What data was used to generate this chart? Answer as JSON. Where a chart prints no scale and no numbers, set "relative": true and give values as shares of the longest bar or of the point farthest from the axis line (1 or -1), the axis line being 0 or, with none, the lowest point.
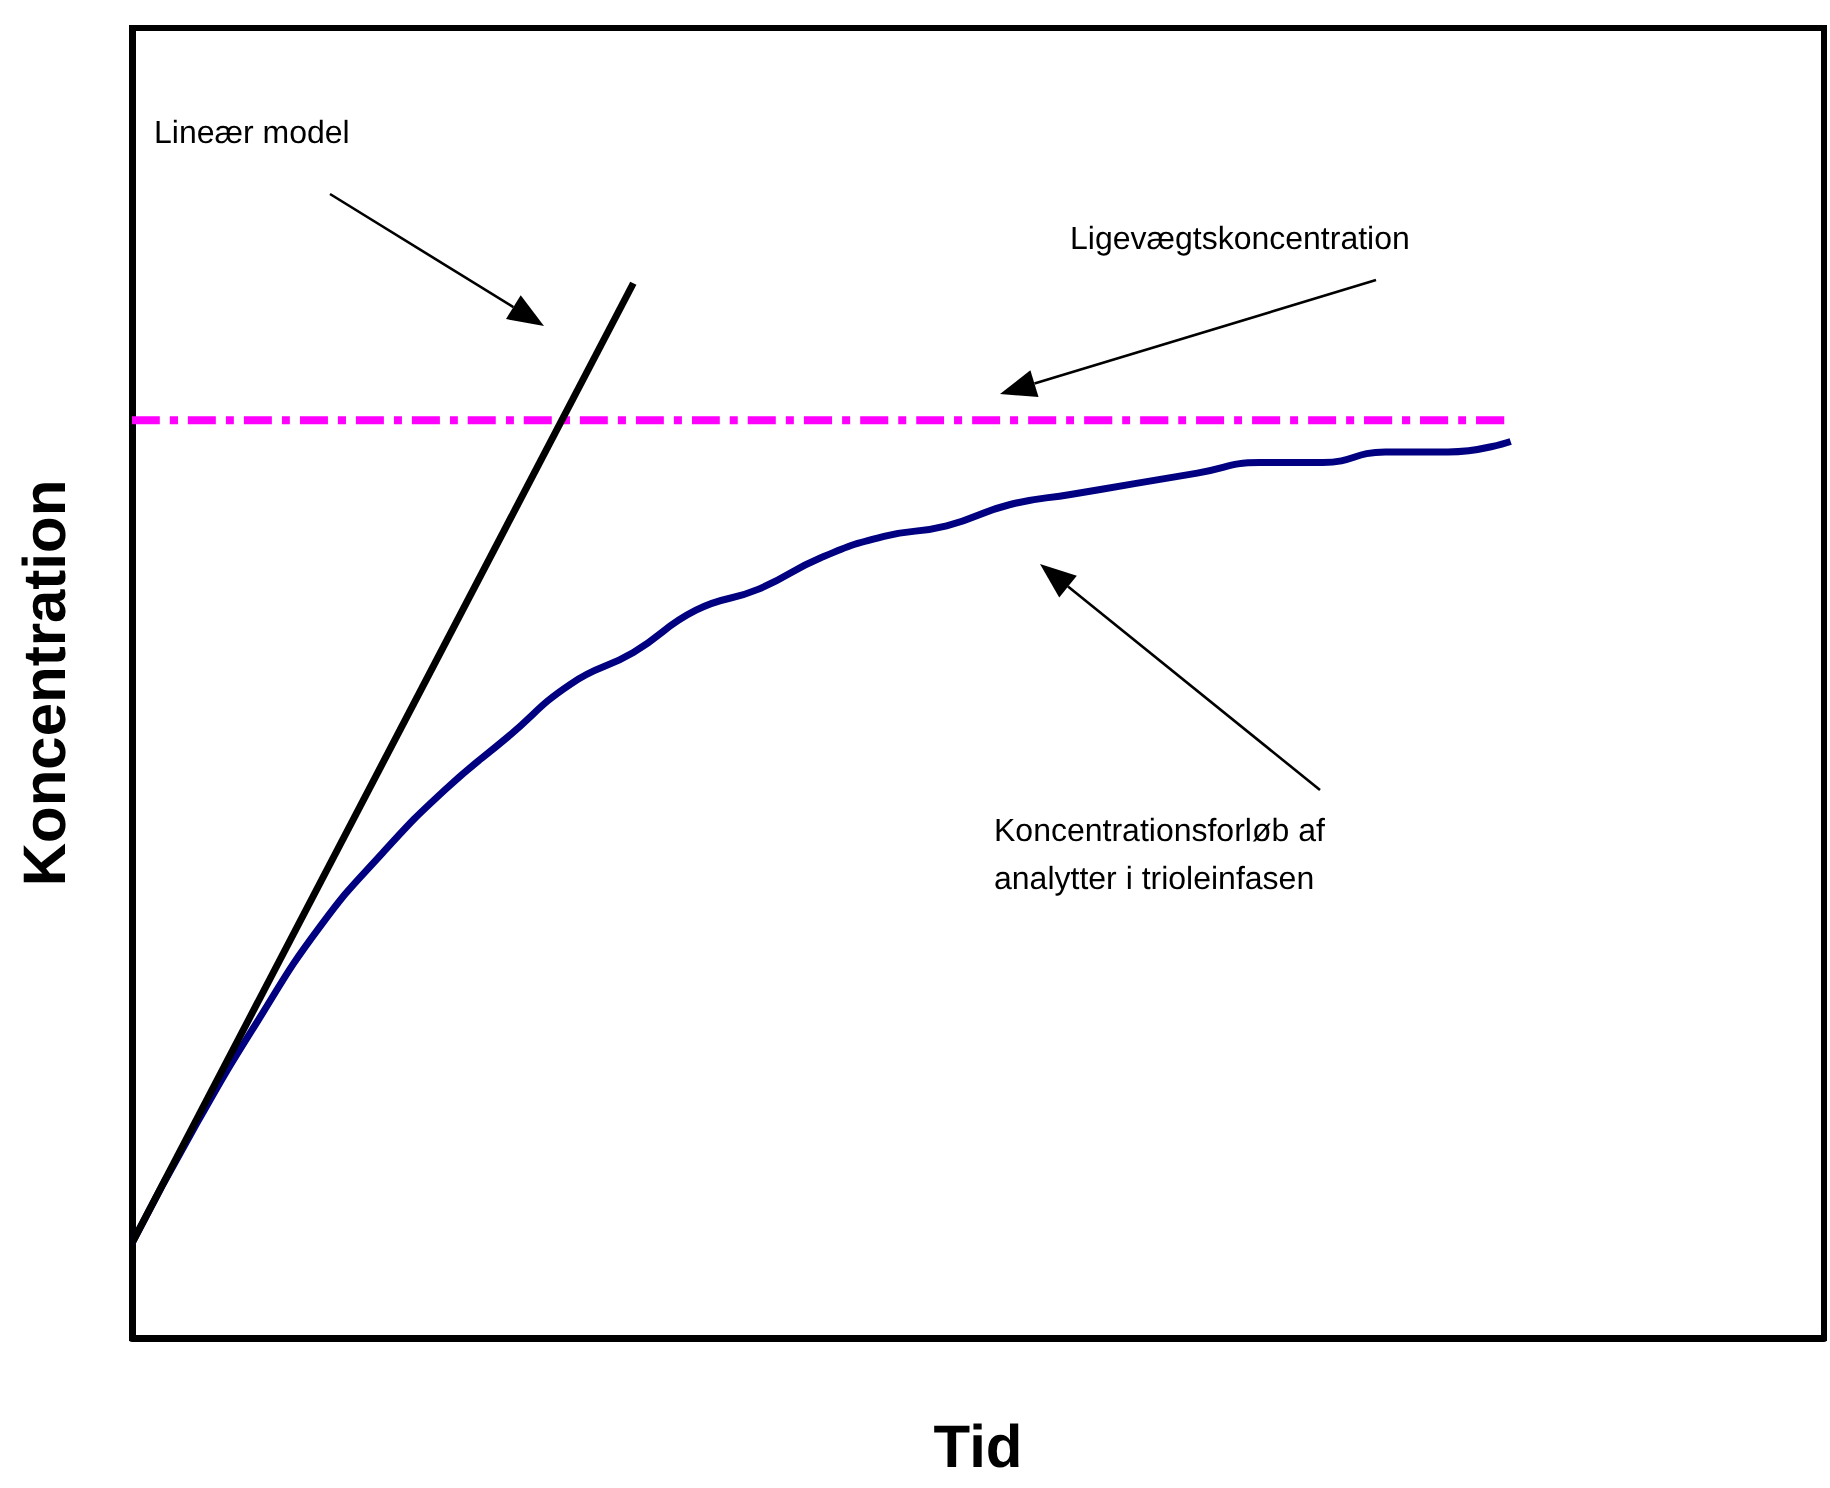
{
  "chart_data": {
    "type": "line",
    "relative": true,
    "xlabel": "Tid",
    "ylabel": "Koncentration",
    "categories": [
      null,
      null,
      null,
      null,
      null,
      null,
      null,
      null,
      null,
      null,
      null,
      null,
      null,
      null,
      null,
      null,
      null,
      null,
      null,
      null,
      null,
      null,
      null,
      null,
      null,
      null,
      null,
      null
    ],
    "series": [
      {
        "color": "#ff00ff",
        "line_style": "dashed",
        "values": [
          0.87,
          null,
          null,
          null,
          null,
          null,
          null,
          null,
          null,
          null,
          null,
          null,
          null,
          null,
          null,
          null,
          null,
          null,
          null,
          null,
          null,
          null,
          0.87,
          null,
          null,
          null,
          null,
          null
        ]
      },
      {
        "color": "#000080",
        "line_style": "solid",
        "values": [
          0.09,
          0.2,
          0.3,
          0.39,
          0.46,
          0.52,
          0.57,
          0.62,
          0.65,
          0.69,
          0.71,
          0.74,
          0.76,
          0.77,
          0.79,
          0.8,
          0.81,
          0.82,
          0.83,
          0.83,
          0.84,
          0.84,
          0.85,
          null,
          null,
          null,
          null,
          null
        ]
      },
      {
        "color": "#000000",
        "line_style": "solid",
        "values": [
          0.09,
          null,
          null,
          null,
          null,
          null,
          null,
          null,
          1.0,
          null,
          null,
          null,
          null,
          null,
          null,
          null,
          null,
          null,
          null,
          null,
          null,
          null,
          null,
          null,
          null,
          null,
          null,
          null
        ]
      }
    ],
    "annotations": [
      "Lineær model",
      "Ligevægtskoncentration",
      "Koncentrationsforløb af\nanalytter i trioleinfasen"
    ],
    "grid": false,
    "marker": "none"
  }
}
